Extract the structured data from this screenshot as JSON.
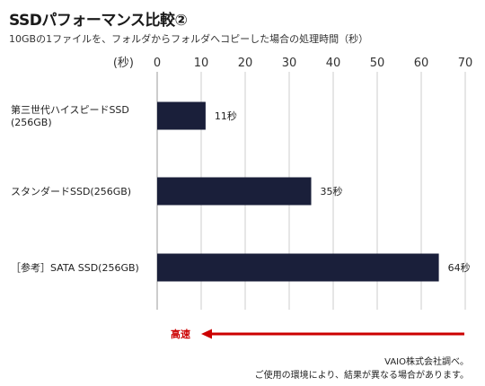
{
  "title": "SSDパフォーマンス比較②",
  "subtitle": "10GBの1ファイルを、フォルダからフォルダへコピーした場合の処理時間（秒）",
  "notes": [
    "VAIO株式会社調べ。",
    "ご使用の環境により、結果が異なる場合があります。"
  ],
  "colors": {
    "bar": "#1a1f3a",
    "arrow": "#cc0000",
    "grid": "#cccccc",
    "text": "#333333"
  },
  "chart_data": {
    "type": "bar",
    "orientation": "horizontal",
    "axis_unit_label": "(秒)",
    "xlim": [
      0,
      70
    ],
    "ticks": [
      0,
      10,
      20,
      30,
      40,
      50,
      60,
      70
    ],
    "grid": true,
    "categories": [
      {
        "label_lines": [
          "第三世代ハイスピードSSD",
          "(256GB)"
        ],
        "value": 11,
        "value_label": "11秒"
      },
      {
        "label_lines": [
          "スタンダードSSD(256GB)"
        ],
        "value": 35,
        "value_label": "35秒"
      },
      {
        "label_lines": [
          "［参考］SATA SSD(256GB)"
        ],
        "value": 64,
        "value_label": "64秒"
      }
    ],
    "annotation": {
      "text": "高速",
      "direction": "left"
    }
  }
}
